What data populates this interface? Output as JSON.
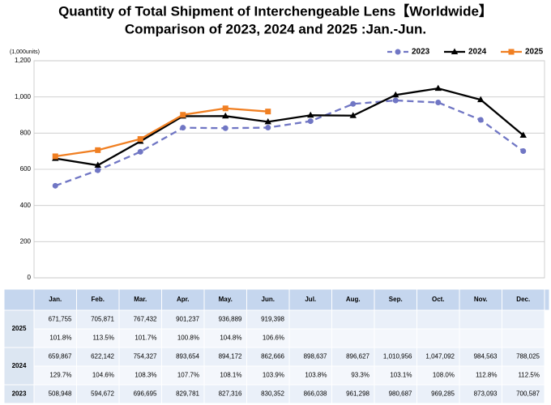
{
  "chart_data": {
    "type": "line",
    "title": "Quantity of Total Shipment of Interchengeable Lens【Worldwide】",
    "subtitle": "Comparison of 2023, 2024 and 2025 :Jan.-Jun.",
    "y_label": "(1,000units)",
    "categories": [
      "Jan.",
      "Feb.",
      "Mar.",
      "Apr.",
      "May.",
      "Jun.",
      "Jul.",
      "Aug.",
      "Sep.",
      "Oct.",
      "Nov.",
      "Dec."
    ],
    "ylim": [
      0,
      1200
    ],
    "yticks": [
      0,
      200,
      400,
      600,
      800,
      {
        "value": 1000,
        "label": "1,000"
      },
      {
        "value": 1200,
        "label": "1,200"
      }
    ],
    "grid": true,
    "legend": "top-right",
    "series": [
      {
        "name": "2023",
        "color": "#7076c4",
        "dash": true,
        "marker": "circle",
        "values": [
          508.948,
          594.672,
          696.695,
          829.781,
          827.316,
          830.352,
          866.038,
          961.298,
          980.687,
          969.285,
          873.093,
          700.587
        ],
        "value_labels": [
          "508,948",
          "594,672",
          "696,695",
          "829,781",
          "827,316",
          "830,352",
          "866,038",
          "961,298",
          "980,687",
          "969,285",
          "873,093",
          "700,587"
        ]
      },
      {
        "name": "2024",
        "color": "#000000",
        "dash": false,
        "marker": "triangle",
        "values": [
          659.867,
          622.142,
          754.327,
          893.654,
          894.172,
          862.666,
          898.637,
          896.627,
          1010.956,
          1047.092,
          984.563,
          788.025
        ],
        "value_labels": [
          "659,867",
          "622,142",
          "754,327",
          "893,654",
          "894,172",
          "862,666",
          "898,637",
          "896,627",
          "1,010,956",
          "1,047,092",
          "984,563",
          "788,025"
        ],
        "growth": [
          "129.7%",
          "104.6%",
          "108.3%",
          "107.7%",
          "108.1%",
          "103.9%",
          "103.8%",
          "93.3%",
          "103.1%",
          "108.0%",
          "112.8%",
          "112.5%"
        ]
      },
      {
        "name": "2025",
        "color": "#f07f22",
        "dash": false,
        "marker": "square",
        "values": [
          671.755,
          705.871,
          767.432,
          901.237,
          936.889,
          919.398,
          null,
          null,
          null,
          null,
          null,
          null
        ],
        "value_labels": [
          "671,755",
          "705,871",
          "767,432",
          "901,237",
          "936,889",
          "919,398",
          null,
          null,
          null,
          null,
          null,
          null
        ],
        "growth": [
          "101.8%",
          "113.5%",
          "101.7%",
          "100.8%",
          "104.8%",
          "106.6%",
          null,
          null,
          null,
          null,
          null,
          null
        ]
      }
    ]
  }
}
